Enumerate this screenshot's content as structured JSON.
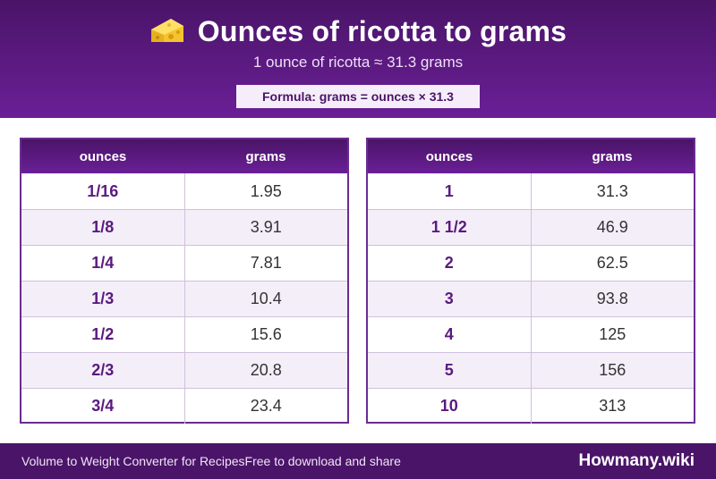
{
  "header": {
    "title": "Ounces of ricotta to grams",
    "icon": "cheese-icon",
    "subtitle": "1 ounce of ricotta ≈ 31.3 grams",
    "formula": "Formula: grams = ounces × 31.3"
  },
  "tables": [
    {
      "headers": {
        "ounces": "ounces",
        "grams": "grams"
      },
      "rows": [
        {
          "ounces": "1/16",
          "grams": "1.95"
        },
        {
          "ounces": "1/8",
          "grams": "3.91"
        },
        {
          "ounces": "1/4",
          "grams": "7.81"
        },
        {
          "ounces": "1/3",
          "grams": "10.4"
        },
        {
          "ounces": "1/2",
          "grams": "15.6"
        },
        {
          "ounces": "2/3",
          "grams": "20.8"
        },
        {
          "ounces": "3/4",
          "grams": "23.4"
        }
      ]
    },
    {
      "headers": {
        "ounces": "ounces",
        "grams": "grams"
      },
      "rows": [
        {
          "ounces": "1",
          "grams": "31.3"
        },
        {
          "ounces": "1 1/2",
          "grams": "46.9"
        },
        {
          "ounces": "2",
          "grams": "62.5"
        },
        {
          "ounces": "3",
          "grams": "93.8"
        },
        {
          "ounces": "4",
          "grams": "125"
        },
        {
          "ounces": "5",
          "grams": "156"
        },
        {
          "ounces": "10",
          "grams": "313"
        }
      ]
    }
  ],
  "footer": {
    "left_text": "Volume to Weight Converter for Recipes",
    "left_text_2": "Free to download and share",
    "brand": "Howmany.wiki"
  },
  "colors": {
    "primary": "#4a1468",
    "accent": "#6a1f96",
    "row_alt": "#f4eef9"
  }
}
